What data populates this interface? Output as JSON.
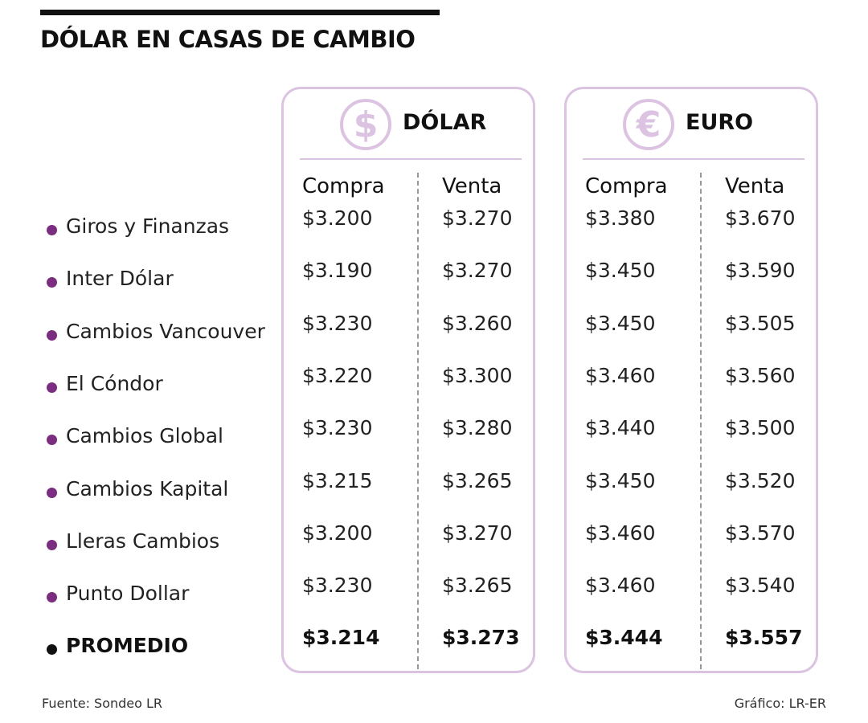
{
  "title": "DÓLAR EN CASAS DE CAMBIO",
  "colors": {
    "accent": "#dcc3e2",
    "bullet": "#7b2d7f"
  },
  "chart_data": {
    "type": "table",
    "groups": [
      {
        "title": "DÓLAR",
        "icon": "dollar-icon",
        "glyph": "$",
        "columns": [
          "Compra",
          "Venta"
        ]
      },
      {
        "title": "EURO",
        "icon": "euro-icon",
        "glyph": "€",
        "columns": [
          "Compra",
          "Venta"
        ]
      }
    ],
    "rows": [
      {
        "name": "Giros y Finanzas",
        "values": [
          "$3.200",
          "$3.270",
          "$3.380",
          "$3.670"
        ]
      },
      {
        "name": "Inter Dólar",
        "values": [
          "$3.190",
          "$3.270",
          "$3.450",
          "$3.590"
        ]
      },
      {
        "name": "Cambios Vancouver",
        "values": [
          "$3.230",
          "$3.260",
          "$3.450",
          "$3.505"
        ]
      },
      {
        "name": "El Cóndor",
        "values": [
          "$3.220",
          "$3.300",
          "$3.460",
          "$3.560"
        ]
      },
      {
        "name": "Cambios Global",
        "values": [
          "$3.230",
          "$3.280",
          "$3.440",
          "$3.500"
        ]
      },
      {
        "name": "Cambios Kapital",
        "values": [
          "$3.215",
          "$3.265",
          "$3.450",
          "$3.520"
        ]
      },
      {
        "name": "Lleras Cambios",
        "values": [
          "$3.200",
          "$3.270",
          "$3.460",
          "$3.570"
        ]
      },
      {
        "name": "Punto Dollar",
        "values": [
          "$3.230",
          "$3.265",
          "$3.460",
          "$3.540"
        ]
      }
    ],
    "average": {
      "name": "PROMEDIO",
      "values": [
        "$3.214",
        "$3.273",
        "$3.444",
        "$3.557"
      ]
    }
  },
  "footer": {
    "source": "Fuente: Sondeo LR",
    "credit": "Gráfico: LR-ER"
  }
}
